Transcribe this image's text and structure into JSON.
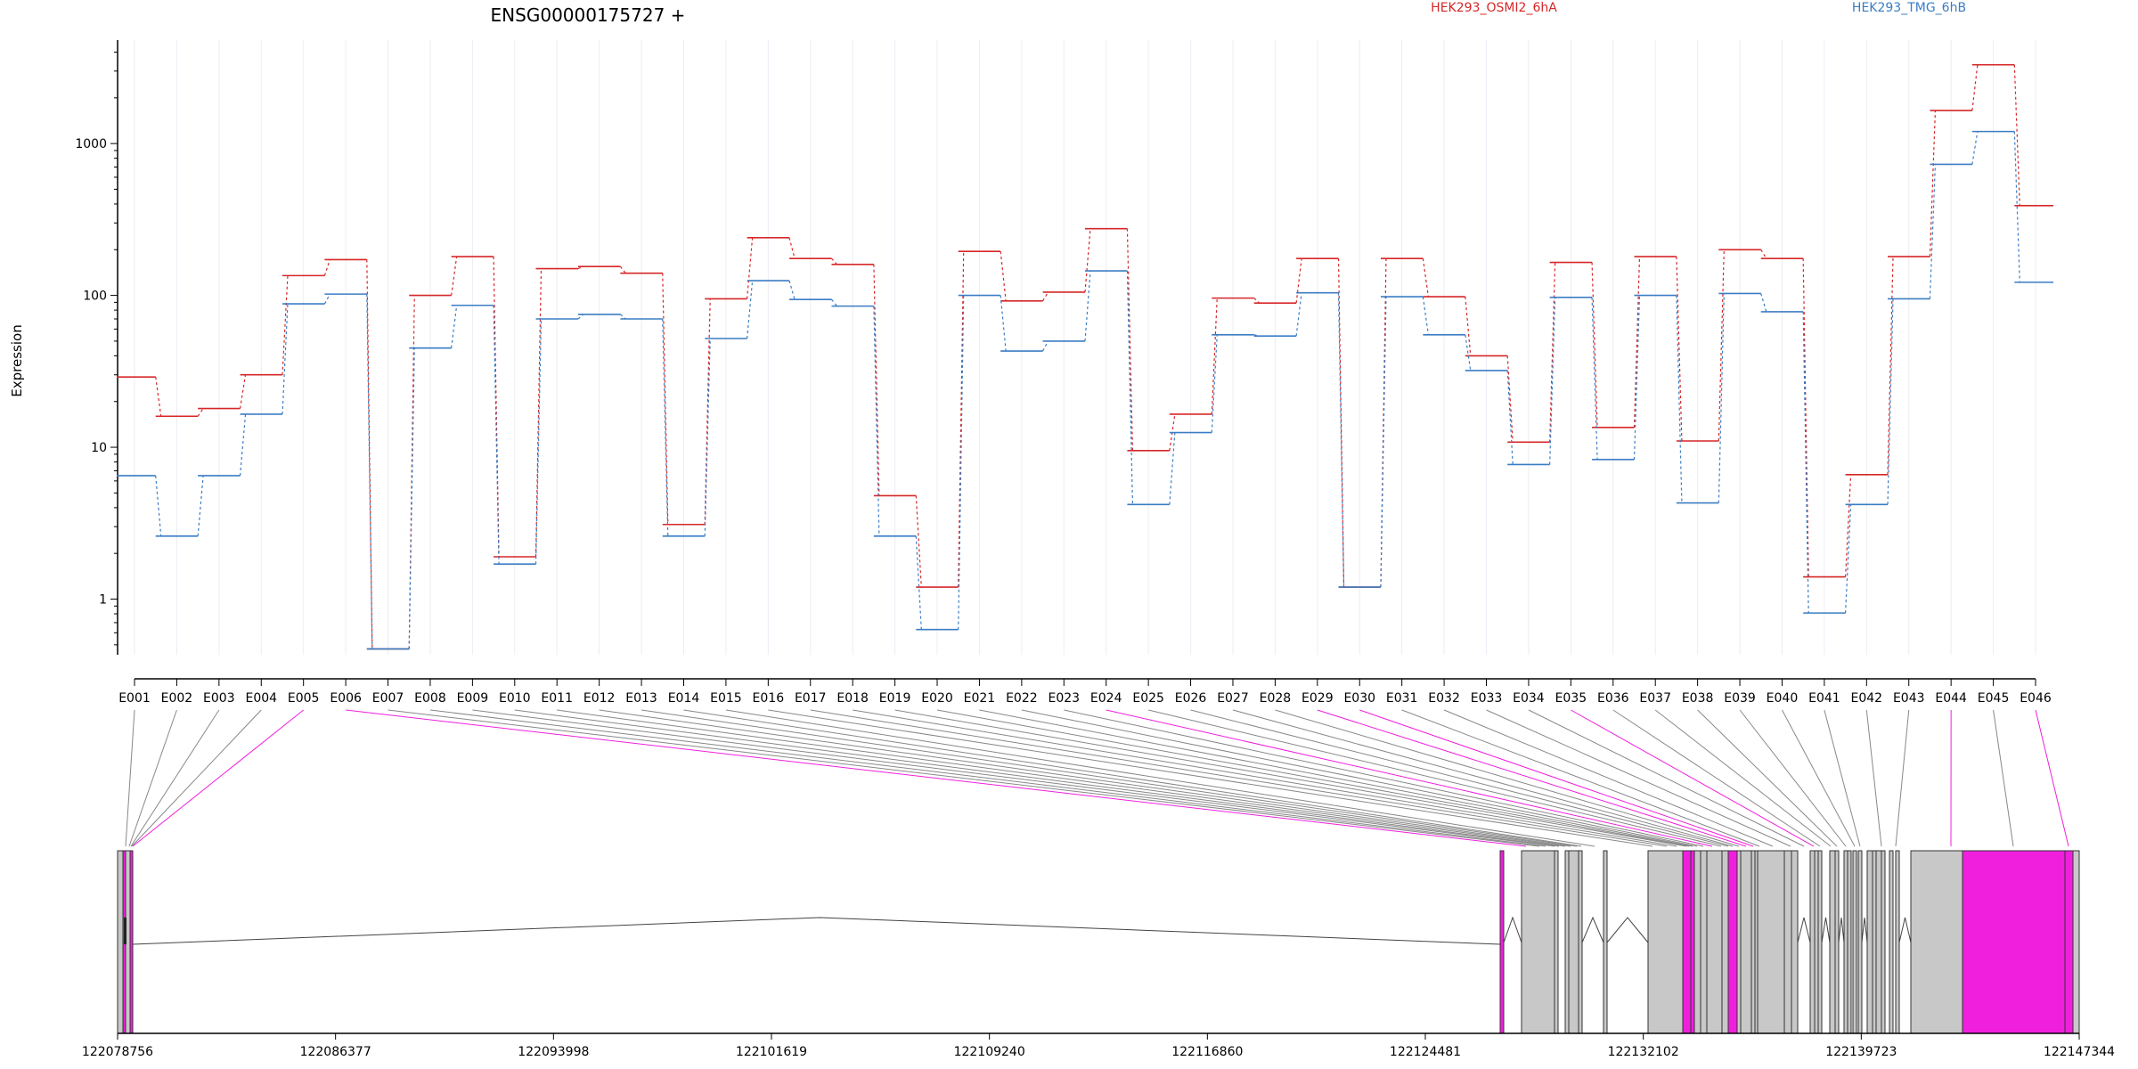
{
  "chart_data": {
    "type": "line",
    "title": "ENSG00000175727 +",
    "ylabel": "Expression",
    "yscale": "log",
    "ylim": [
      0.43,
      4800
    ],
    "yticks": [
      {
        "v": 1,
        "label": "1"
      },
      {
        "v": 10,
        "label": "10"
      },
      {
        "v": 100,
        "label": "100"
      },
      {
        "v": 1000,
        "label": "1000"
      }
    ],
    "categories": [
      "E001",
      "E002",
      "E003",
      "E004",
      "E005",
      "E006",
      "E007",
      "E008",
      "E009",
      "E010",
      "E011",
      "E012",
      "E013",
      "E014",
      "E015",
      "E016",
      "E017",
      "E018",
      "E019",
      "E020",
      "E021",
      "E022",
      "E023",
      "E024",
      "E025",
      "E026",
      "E027",
      "E028",
      "E029",
      "E030",
      "E031",
      "E032",
      "E033",
      "E034",
      "E035",
      "E036",
      "E037",
      "E038",
      "E039",
      "E040",
      "E041",
      "E042",
      "E043",
      "E044",
      "E045",
      "E046"
    ],
    "series": [
      {
        "name": "HEK293_OSMI2_6hA",
        "color": "#d62728",
        "values": [
          29,
          16,
          18,
          30,
          135,
          172,
          0.47,
          100,
          180,
          1.9,
          150,
          155,
          140,
          3.1,
          95,
          240,
          175,
          160,
          4.8,
          1.2,
          195,
          92,
          105,
          275,
          9.5,
          16.5,
          96,
          89,
          175,
          1.2,
          175,
          98,
          40,
          10.8,
          165,
          13.5,
          180,
          11,
          200,
          175,
          1.4,
          6.6,
          180,
          1650,
          3300,
          390
        ]
      },
      {
        "name": "HEK293_TMG_6hB",
        "color": "#3b7dc4",
        "values": [
          6.5,
          2.6,
          6.5,
          16.5,
          88,
          102,
          0.47,
          45,
          86,
          1.7,
          70,
          75,
          70,
          2.6,
          52,
          125,
          94,
          85,
          2.6,
          0.63,
          100,
          43,
          50,
          145,
          4.2,
          12.5,
          55,
          54,
          104,
          1.2,
          98,
          55,
          32,
          7.7,
          97,
          8.3,
          100,
          4.3,
          103,
          78,
          0.81,
          4.2,
          95,
          730,
          1200,
          122
        ]
      }
    ],
    "genomic_axis": {
      "ticks": [
        "122078756",
        "122086377",
        "122093998",
        "122101619",
        "122109240",
        "122116860",
        "122124481",
        "122132102",
        "122139723",
        "122147344"
      ]
    },
    "highlighted_exons": [
      "E005",
      "E006",
      "E024",
      "E029",
      "E030",
      "E035",
      "E044",
      "E046"
    ],
    "colors": {
      "highlight": "#f01fde",
      "exon_fill": "#c8c8c8",
      "link_line": "#888888",
      "grid": "#ececf6"
    }
  }
}
